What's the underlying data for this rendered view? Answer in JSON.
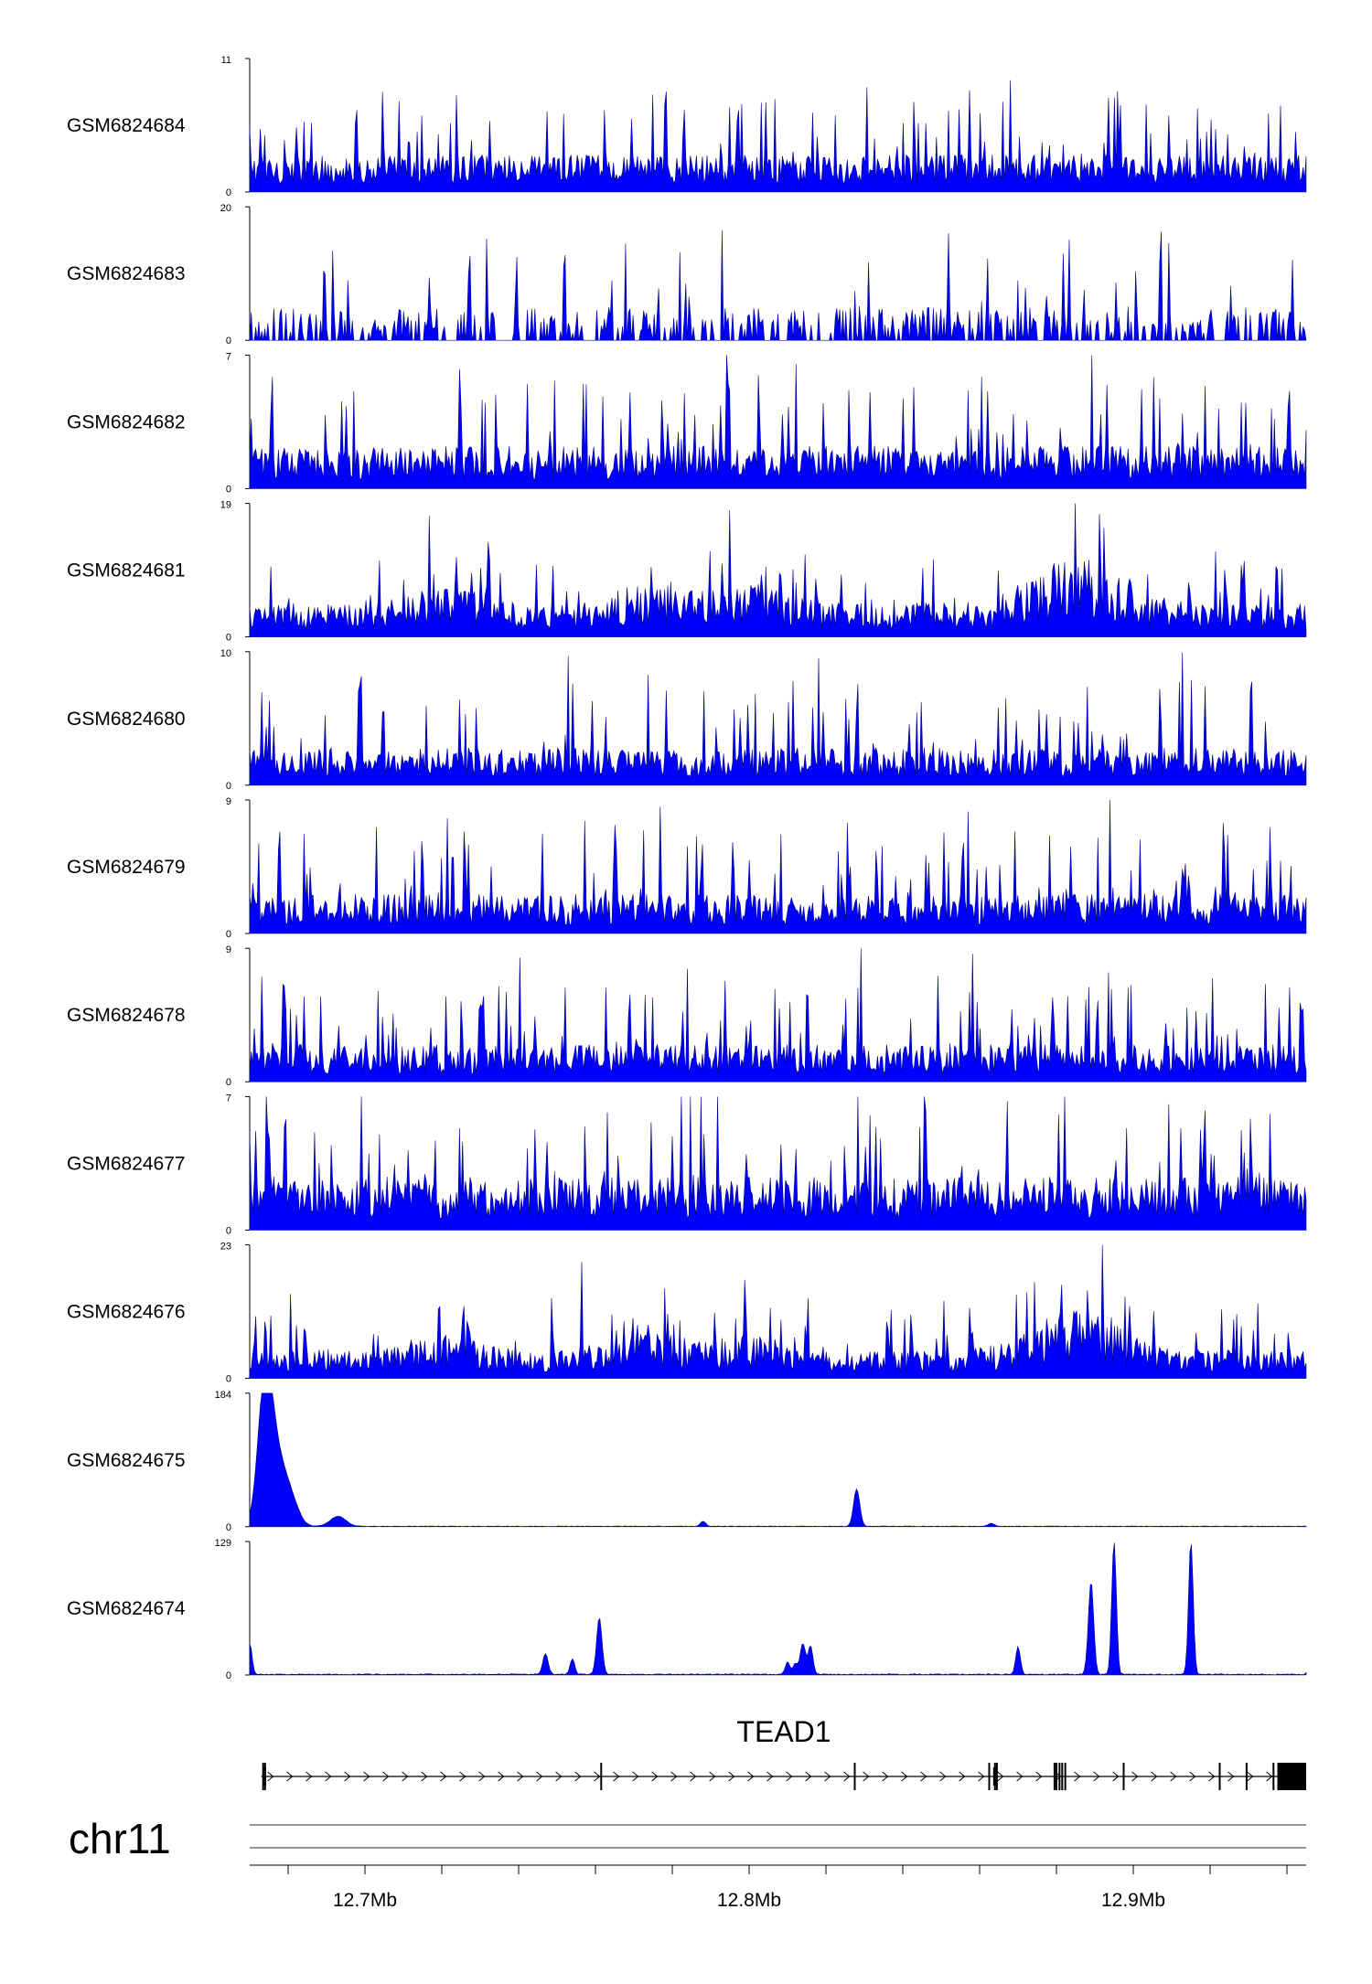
{
  "chart_data": {
    "type": "area",
    "chromosome": "chr11",
    "x_range": [
      12.67,
      12.945
    ],
    "x_unit": "Mb",
    "x_tick_labels": [
      "12.7Mb",
      "12.8Mb",
      "12.9Mb"
    ],
    "x_tick_label_positions": [
      12.7,
      12.8,
      12.9
    ],
    "x_minor_ticks": [
      12.68,
      12.7,
      12.72,
      12.74,
      12.76,
      12.78,
      12.8,
      12.82,
      12.84,
      12.86,
      12.88,
      12.9,
      12.92,
      12.94
    ],
    "series_color": "#0000ff",
    "tracks": [
      {
        "name": "GSM6824684",
        "ymax": 11,
        "ymin": 0,
        "profile": "noisy",
        "mean": 2.2,
        "spike": 6
      },
      {
        "name": "GSM6824683",
        "ymax": 20,
        "ymin": 0,
        "profile": "sparse",
        "mean": 3.5,
        "spike": 14
      },
      {
        "name": "GSM6824682",
        "ymax": 7,
        "ymin": 0,
        "profile": "noisy",
        "mean": 1.6,
        "spike": 4.5
      },
      {
        "name": "GSM6824681",
        "ymax": 19,
        "ymin": 0,
        "profile": "broad",
        "mean": 3.5,
        "spike": 8
      },
      {
        "name": "GSM6824680",
        "ymax": 10,
        "ymin": 0,
        "profile": "noisy",
        "mean": 2.0,
        "spike": 6
      },
      {
        "name": "GSM6824679",
        "ymax": 9,
        "ymin": 0,
        "profile": "noisy",
        "mean": 1.9,
        "spike": 5.5
      },
      {
        "name": "GSM6824678",
        "ymax": 9,
        "ymin": 0,
        "profile": "noisy",
        "mean": 1.8,
        "spike": 5.5
      },
      {
        "name": "GSM6824677",
        "ymax": 7,
        "ymin": 0,
        "profile": "noisy",
        "mean": 2.0,
        "spike": 4.5
      },
      {
        "name": "GSM6824676",
        "ymax": 23,
        "ymin": 0,
        "profile": "broad",
        "mean": 3.5,
        "spike": 10
      },
      {
        "name": "GSM6824675",
        "ymax": 184,
        "ymin": 0,
        "profile": "peaks",
        "mean": 1.0,
        "spike": 0,
        "peaks": [
          [
            12.674,
            184,
            0.0018
          ],
          [
            12.677,
            90,
            0.0025
          ],
          [
            12.681,
            25,
            0.002
          ],
          [
            12.693,
            14,
            0.002
          ],
          [
            12.788,
            7,
            0.0007
          ],
          [
            12.828,
            52,
            0.0008
          ],
          [
            12.863,
            4,
            0.0008
          ]
        ]
      },
      {
        "name": "GSM6824674",
        "ymax": 129,
        "ymin": 0,
        "profile": "peaks",
        "mean": 1.2,
        "spike": 0,
        "peaks": [
          [
            12.67,
            30,
            0.0006
          ],
          [
            12.747,
            20,
            0.0007
          ],
          [
            12.754,
            15,
            0.0006
          ],
          [
            12.761,
            55,
            0.0007
          ],
          [
            12.81,
            12,
            0.0006
          ],
          [
            12.812,
            10,
            0.0006
          ],
          [
            12.814,
            30,
            0.0007
          ],
          [
            12.816,
            28,
            0.0006
          ],
          [
            12.87,
            27,
            0.0006
          ],
          [
            12.889,
            90,
            0.0007
          ],
          [
            12.895,
            129,
            0.0006
          ],
          [
            12.915,
            129,
            0.0006
          ],
          [
            12.946,
            8,
            0.0006
          ]
        ]
      }
    ],
    "gene": {
      "name": "TEAD1",
      "start": 12.673,
      "end": 12.945,
      "strand": "+",
      "exons": [
        12.6735,
        12.674,
        12.7615,
        12.8275,
        12.8625,
        12.864,
        12.8645,
        12.8795,
        12.88,
        12.8808,
        12.8815,
        12.8823,
        12.8975,
        12.9225,
        12.9295,
        12.9365
      ],
      "last_exon": [
        12.9375,
        12.945
      ]
    }
  }
}
